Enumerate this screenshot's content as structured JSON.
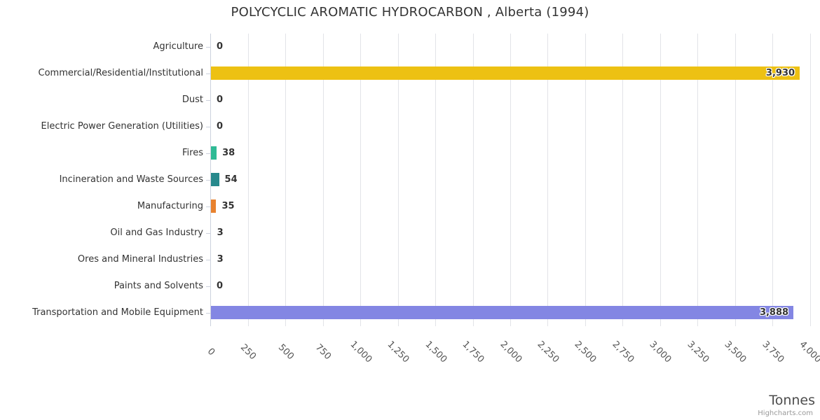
{
  "chart_data": {
    "type": "bar",
    "orientation": "horizontal",
    "title": "POLYCYCLIC AROMATIC HYDROCARBON , Alberta (1994)",
    "categories": [
      "Agriculture",
      "Commercial/Residential/Institutional",
      "Dust",
      "Electric Power Generation (Utilities)",
      "Fires",
      "Incineration and Waste Sources",
      "Manufacturing",
      "Oil and Gas Industry",
      "Ores and Mineral Industries",
      "Paints and Solvents",
      "Transportation and Mobile Equipment"
    ],
    "values": [
      0,
      3930,
      0,
      0,
      38,
      54,
      35,
      3,
      3,
      0,
      3888
    ],
    "value_labels": [
      "0",
      "3,930",
      "0",
      "0",
      "38",
      "54",
      "35",
      "3",
      "3",
      "0",
      "3,888"
    ],
    "bar_colors": [
      null,
      "#EDC113",
      null,
      null,
      "#2FBA95",
      "#27898C",
      "#E8822F",
      null,
      null,
      null,
      "#8386E3"
    ],
    "xlim": [
      0,
      4000
    ],
    "tick_interval": 250,
    "tick_labels": [
      "0",
      "250",
      "500",
      "750",
      "1,000",
      "1,250",
      "1,500",
      "1,750",
      "2,000",
      "2,250",
      "2,500",
      "2,750",
      "3,000",
      "3,250",
      "3,500",
      "3,750",
      "4,000"
    ],
    "tick_label_rotation_deg": 45,
    "value_axis_title": "Tonnes",
    "grid": true,
    "legend": false,
    "credit": "Highcharts.com"
  }
}
